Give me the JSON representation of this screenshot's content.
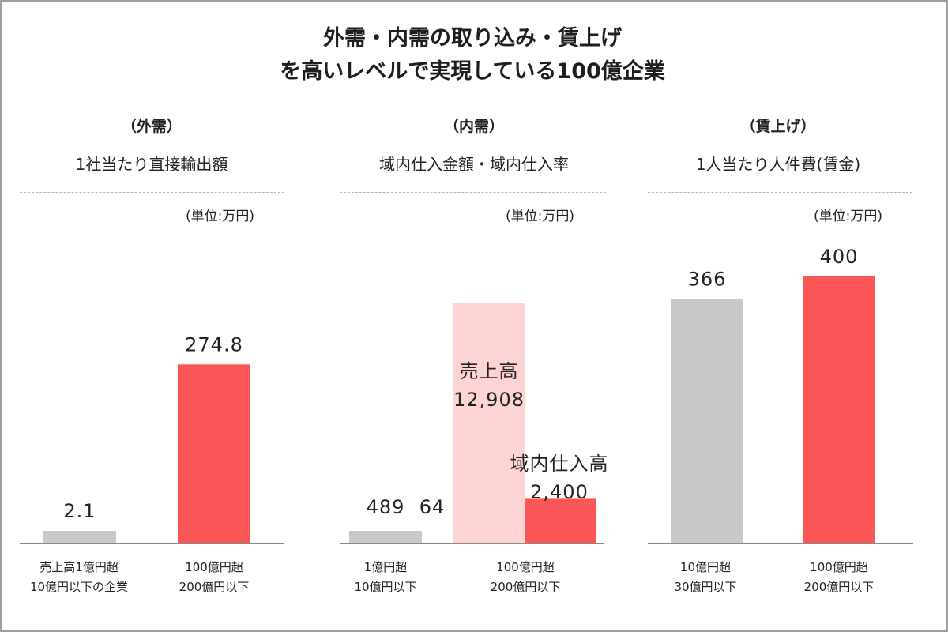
{
  "title": {
    "line1": "外需・内需の取り込み・賃上げ",
    "line2": "を高いレベルで実現している100億企業"
  },
  "colors": {
    "small_company": "#c8c8c8",
    "large_company": "#fd5656",
    "sales_background": "#fdd3d3",
    "axis": "#8a8a8a"
  },
  "chart_data": [
    {
      "type": "bar",
      "category": "（外需）",
      "title": "1社当たり直接輸出額",
      "unit": "(単位:万円)",
      "categories": [
        "売上高1億円超\n10億円以下の企業",
        "100億円超\n200億円以下"
      ],
      "values": [
        2.1,
        274.8
      ],
      "value_labels": [
        "2.1",
        "274.8"
      ],
      "ylim": [
        0,
        400
      ]
    },
    {
      "type": "bar",
      "category": "（内需）",
      "title": "域内仕入金額・域内仕入率",
      "unit": "(単位:万円)",
      "categories": [
        "1億円超\n10億円以下",
        "100億円超\n200億円以下"
      ],
      "series": [
        {
          "name": "売上高",
          "values": [
            489,
            12908
          ],
          "value_labels": [
            "489",
            "12,908"
          ]
        },
        {
          "name": "域内仕入高",
          "values": [
            64,
            2400
          ],
          "value_labels": [
            "64",
            "2,400"
          ]
        }
      ],
      "annotations": [
        "売上高",
        "域内仕入高"
      ],
      "ylim": [
        0,
        14000
      ]
    },
    {
      "type": "bar",
      "category": "（賃上げ）",
      "title": "1人当たり人件費(賃金)",
      "unit": "(単位:万円)",
      "categories": [
        "10億円超\n30億円以下",
        "100億円超\n200億円以下"
      ],
      "values": [
        366,
        400
      ],
      "value_labels": [
        "366",
        "400"
      ],
      "ylim": [
        0,
        440
      ]
    }
  ]
}
